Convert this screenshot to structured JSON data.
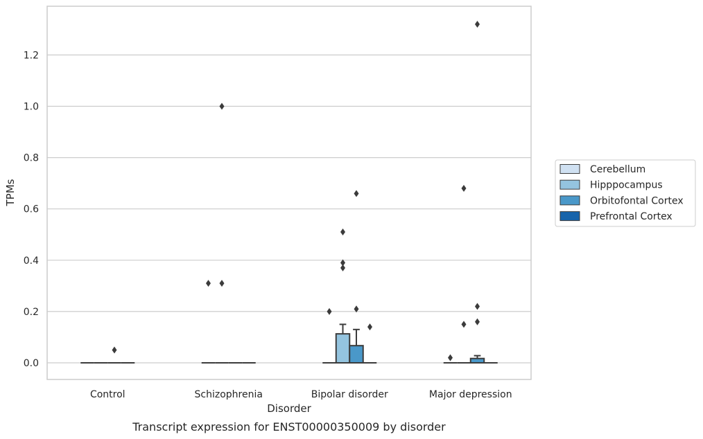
{
  "chart_data": {
    "type": "box",
    "caption": "Transcript expression for ENST00000350009 by disorder",
    "xlabel": "Disorder",
    "ylabel": "TPMs",
    "ylim": [
      -0.065,
      1.385
    ],
    "yticks": [
      0.0,
      0.2,
      0.4,
      0.6,
      0.8,
      1.0,
      1.2
    ],
    "ytick_labels": [
      "0.0",
      "0.2",
      "0.4",
      "0.6",
      "0.8",
      "1.0",
      "1.2"
    ],
    "grid": "horizontal",
    "legend_position": "right",
    "categories": [
      "Control",
      "Schizophrenia",
      "Bipolar disorder",
      "Major depression"
    ],
    "series": [
      {
        "name": "Cerebellum",
        "color": "#d0e1f2",
        "boxes": [
          {
            "q1": 0,
            "median": 0,
            "q3": 0,
            "whisker_low": 0,
            "whisker_high": 0,
            "outliers": []
          },
          {
            "q1": 0,
            "median": 0,
            "q3": 0,
            "whisker_low": 0,
            "whisker_high": 0,
            "outliers": [
              0.31
            ]
          },
          {
            "q1": 0,
            "median": 0,
            "q3": 0,
            "whisker_low": 0,
            "whisker_high": 0,
            "outliers": [
              0.2
            ]
          },
          {
            "q1": 0,
            "median": 0,
            "q3": 0,
            "whisker_low": 0,
            "whisker_high": 0,
            "outliers": [
              0.02
            ]
          }
        ]
      },
      {
        "name": "Hipppocampus",
        "color": "#94c4df",
        "boxes": [
          {
            "q1": 0,
            "median": 0,
            "q3": 0,
            "whisker_low": 0,
            "whisker_high": 0,
            "outliers": []
          },
          {
            "q1": 0,
            "median": 0,
            "q3": 0,
            "whisker_low": 0,
            "whisker_high": 0,
            "outliers": [
              0.31,
              1.0
            ]
          },
          {
            "q1": 0,
            "median": 0,
            "q3": 0.113,
            "whisker_low": 0,
            "whisker_high": 0.15,
            "outliers": [
              0.37,
              0.39,
              0.51
            ]
          },
          {
            "q1": 0,
            "median": 0,
            "q3": 0,
            "whisker_low": 0,
            "whisker_high": 0,
            "outliers": [
              0.15,
              0.68
            ]
          }
        ]
      },
      {
        "name": "Orbitofontal Cortex",
        "color": "#4a98c9",
        "boxes": [
          {
            "q1": 0,
            "median": 0,
            "q3": 0,
            "whisker_low": 0,
            "whisker_high": 0,
            "outliers": [
              0.05
            ]
          },
          {
            "q1": 0,
            "median": 0,
            "q3": 0,
            "whisker_low": 0,
            "whisker_high": 0,
            "outliers": []
          },
          {
            "q1": 0,
            "median": 0,
            "q3": 0.067,
            "whisker_low": 0,
            "whisker_high": 0.13,
            "outliers": [
              0.21,
              0.66
            ]
          },
          {
            "q1": 0,
            "median": 0,
            "q3": 0.017,
            "whisker_low": 0,
            "whisker_high": 0.028,
            "outliers": [
              0.16,
              0.22,
              1.32
            ]
          }
        ]
      },
      {
        "name": "Prefrontal Cortex",
        "color": "#1764ab",
        "boxes": [
          {
            "q1": 0,
            "median": 0,
            "q3": 0,
            "whisker_low": 0,
            "whisker_high": 0,
            "outliers": []
          },
          {
            "q1": 0,
            "median": 0,
            "q3": 0,
            "whisker_low": 0,
            "whisker_high": 0,
            "outliers": []
          },
          {
            "q1": 0,
            "median": 0,
            "q3": 0,
            "whisker_low": 0,
            "whisker_high": 0,
            "outliers": [
              0.14
            ]
          },
          {
            "q1": 0,
            "median": 0,
            "q3": 0,
            "whisker_low": 0,
            "whisker_high": 0,
            "outliers": []
          }
        ]
      }
    ]
  }
}
